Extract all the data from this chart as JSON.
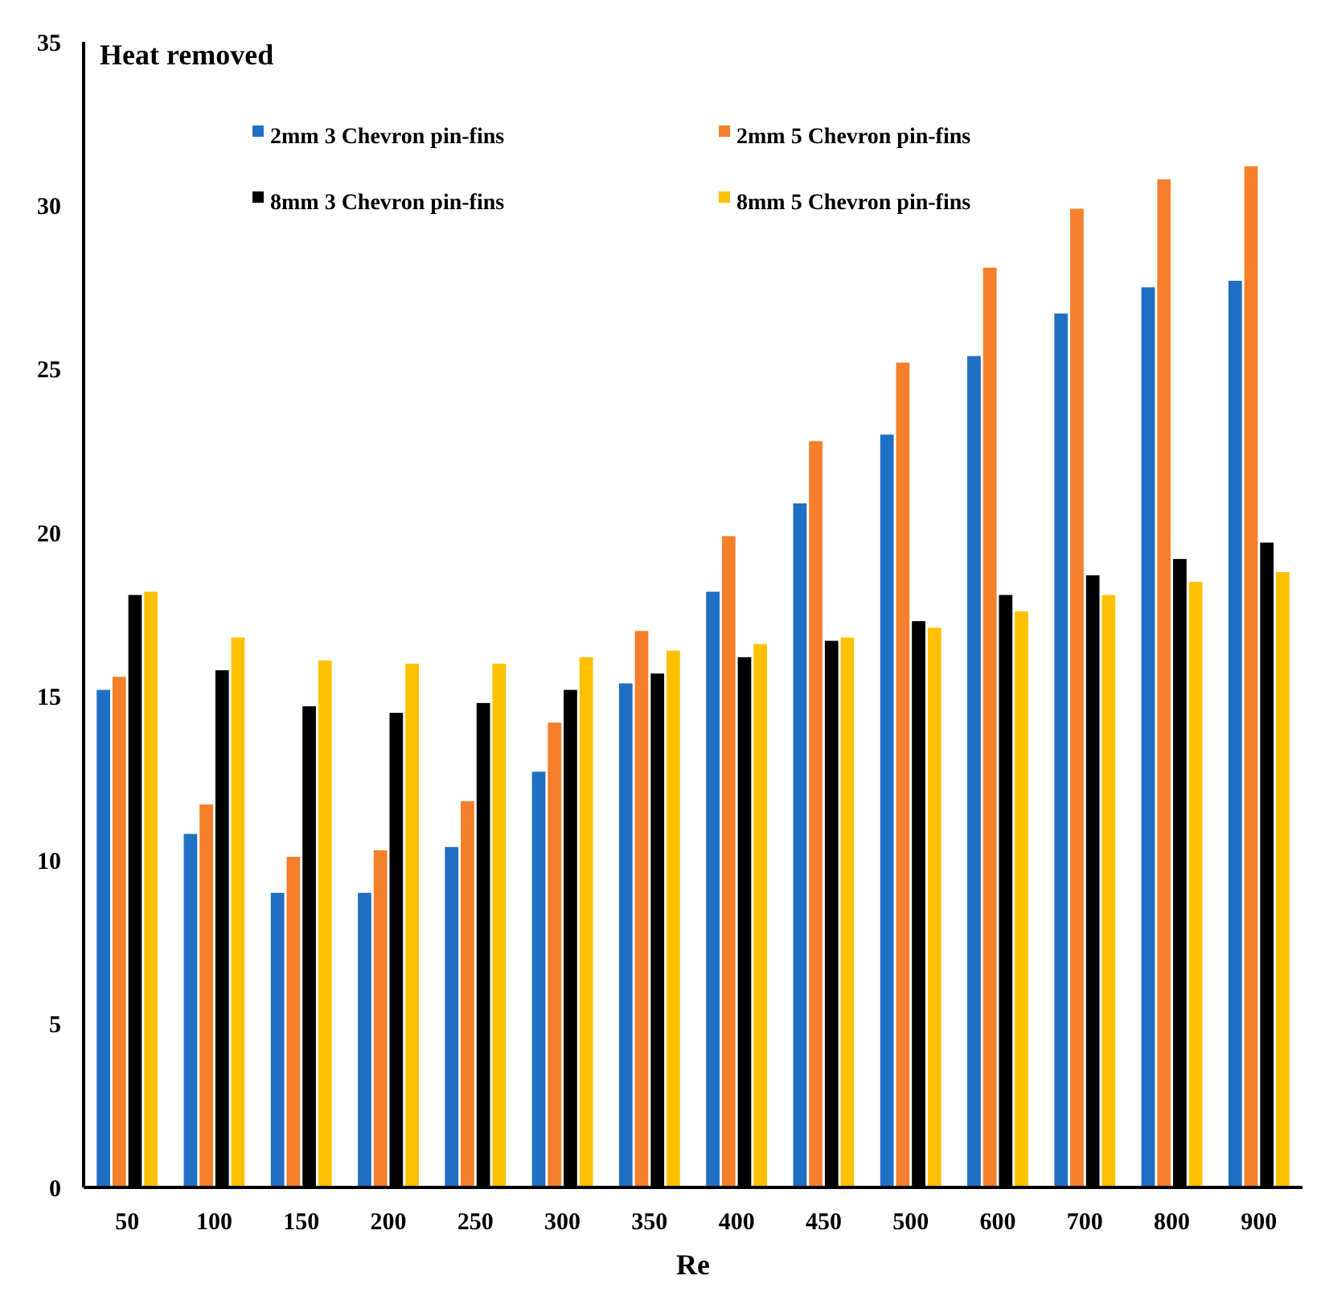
{
  "chart_data": {
    "type": "bar",
    "ylabel": "Heat removed",
    "xlabel": "Re",
    "categories": [
      "50",
      "100",
      "150",
      "200",
      "250",
      "300",
      "350",
      "400",
      "450",
      "500",
      "600",
      "700",
      "800",
      "900"
    ],
    "series": [
      {
        "name": "2mm 3 Chevron pin-fins",
        "color": "#1f6fc5",
        "values": [
          15.2,
          10.8,
          9.0,
          9.0,
          10.4,
          12.7,
          15.4,
          18.2,
          20.9,
          23.0,
          25.4,
          26.7,
          27.5,
          27.7
        ]
      },
      {
        "name": "2mm 5 Chevron pin-fins",
        "color": "#f57f2a",
        "values": [
          15.6,
          11.7,
          10.1,
          10.3,
          11.8,
          14.2,
          17.0,
          19.9,
          22.8,
          25.2,
          28.1,
          29.9,
          30.8,
          31.2
        ]
      },
      {
        "name": "8mm 3 Chevron pin-fins",
        "color": "#000000",
        "values": [
          18.1,
          15.8,
          14.7,
          14.5,
          14.8,
          15.2,
          15.7,
          16.2,
          16.7,
          17.3,
          18.1,
          18.7,
          19.2,
          19.7
        ]
      },
      {
        "name": "8mm 5 Chevron pin-fins",
        "color": "#ffc000",
        "values": [
          18.2,
          16.8,
          16.1,
          16.0,
          16.0,
          16.2,
          16.4,
          16.6,
          16.8,
          17.1,
          17.6,
          18.1,
          18.5,
          18.8
        ]
      }
    ],
    "ylim": [
      0,
      35
    ],
    "yticks": [
      0,
      5,
      10,
      15,
      20,
      25,
      30,
      35
    ],
    "grid": false,
    "legend": "top"
  }
}
